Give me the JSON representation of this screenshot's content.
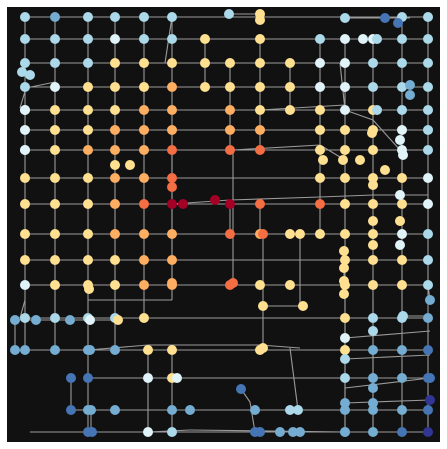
{
  "palette": {
    "background": "#ffffff",
    "plot_background": "#111111",
    "edge_color": "#9a9a9a",
    "node_color_scale": [
      "#313695",
      "#4575b4",
      "#74add1",
      "#abd9e9",
      "#e0f3f8",
      "#ffffbf",
      "#fee090",
      "#fdae61",
      "#f46d43",
      "#d73027",
      "#a50026"
    ]
  }
}
